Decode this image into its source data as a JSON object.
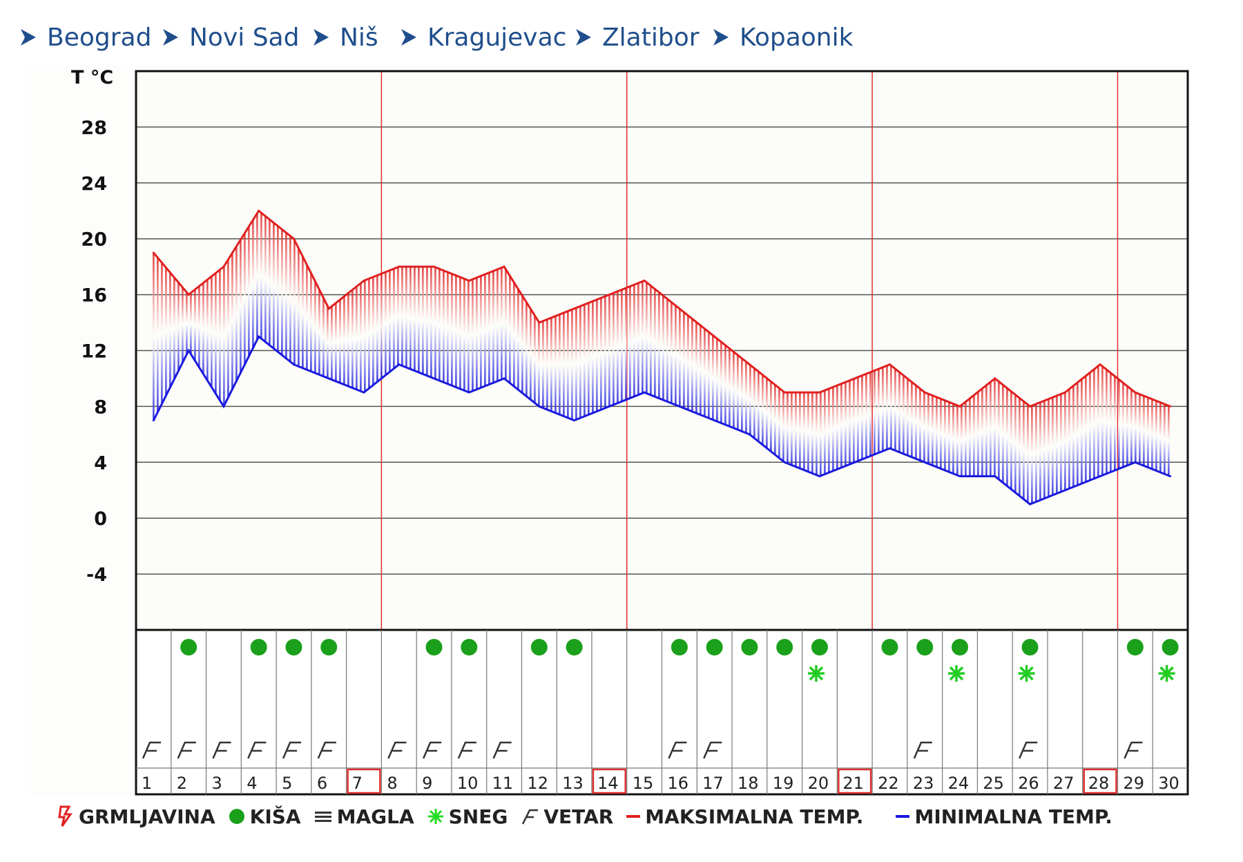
{
  "nav": {
    "items": [
      {
        "label": "Beograd"
      },
      {
        "label": "Novi Sad"
      },
      {
        "label": "Niš"
      },
      {
        "label": "Kragujevac"
      },
      {
        "label": "Zlatibor"
      },
      {
        "label": "Kopaonik"
      }
    ]
  },
  "chart_data": {
    "type": "line",
    "title": "",
    "ylabel": "T °C",
    "xlabel": "",
    "ylim": [
      -8,
      32
    ],
    "yticks": [
      -4,
      0,
      4,
      8,
      12,
      16,
      20,
      24,
      28
    ],
    "grid": true,
    "x": [
      1,
      2,
      3,
      4,
      5,
      6,
      7,
      8,
      9,
      10,
      11,
      12,
      13,
      14,
      15,
      16,
      17,
      18,
      19,
      20,
      21,
      22,
      23,
      24,
      25,
      26,
      27,
      28,
      29,
      30
    ],
    "weekend_days": [
      7,
      14,
      21,
      28
    ],
    "series": [
      {
        "name": "MAKSIMALNA TEMP.",
        "color": "#e02020",
        "values": [
          19,
          16,
          18,
          22,
          20,
          15,
          17,
          18,
          18,
          17,
          18,
          14,
          15,
          16,
          17,
          15,
          13,
          11,
          9,
          9,
          10,
          11,
          9,
          8,
          10,
          8,
          9,
          11,
          9,
          8
        ]
      },
      {
        "name": "MINIMALNA TEMP.",
        "color": "#1a1ae0",
        "values": [
          7,
          12,
          8,
          13,
          11,
          10,
          9,
          11,
          10,
          9,
          10,
          8,
          7,
          8,
          9,
          8,
          7,
          6,
          4,
          3,
          4,
          5,
          4,
          3,
          3,
          1,
          2,
          3,
          4,
          3
        ]
      }
    ],
    "conditions": {
      "rain": [
        2,
        4,
        5,
        6,
        9,
        10,
        12,
        13,
        16,
        17,
        18,
        19,
        20,
        22,
        23,
        24,
        26,
        29,
        30
      ],
      "snow": [
        20,
        24,
        26,
        30
      ],
      "wind": [
        1,
        2,
        3,
        4,
        5,
        6,
        8,
        9,
        10,
        11,
        16,
        17,
        23,
        26,
        29
      ]
    },
    "legend_position": "bottom",
    "legend": [
      {
        "key": "thunder",
        "label": "GRMLJAVINA",
        "color": "#e02020",
        "icon": "thunder-icon"
      },
      {
        "key": "rain",
        "label": "KIŠA",
        "color": "#1aa01a",
        "icon": "rain-dot-icon"
      },
      {
        "key": "fog",
        "label": "MAGLA",
        "color": "#333333",
        "icon": "fog-lines-icon"
      },
      {
        "key": "snow",
        "label": "SNEG",
        "color": "#22dd22",
        "icon": "snowflake-icon"
      },
      {
        "key": "wind",
        "label": "VETAR",
        "color": "#333333",
        "icon": "wind-flag-icon"
      },
      {
        "key": "max",
        "label": "MAKSIMALNA TEMP.",
        "color": "#e02020",
        "icon": "red-dash-icon"
      },
      {
        "key": "min",
        "label": "MINIMALNA TEMP.",
        "color": "#1a1ae0",
        "icon": "blue-dash-icon"
      }
    ]
  }
}
